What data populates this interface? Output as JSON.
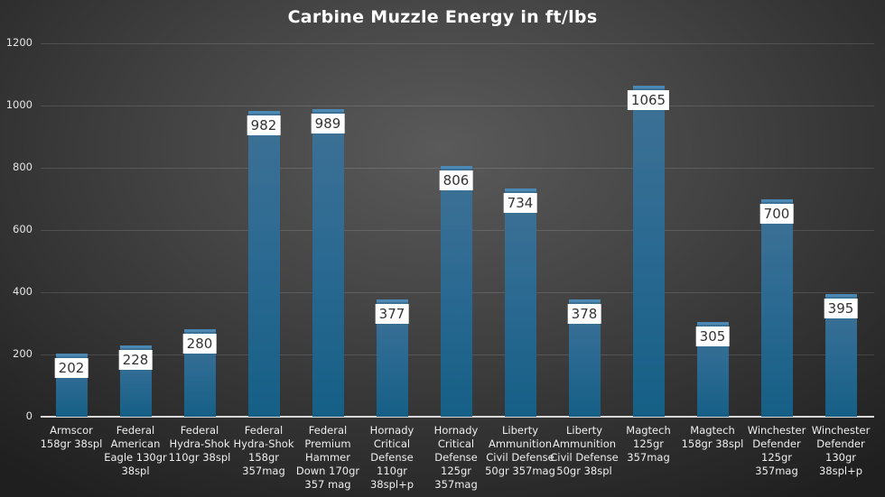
{
  "chart_data": {
    "type": "bar",
    "title": "Carbine Muzzle Energy in ft/lbs",
    "xlabel": "",
    "ylabel": "",
    "ylim": [
      0,
      1200
    ],
    "yticks": [
      0,
      200,
      400,
      600,
      800,
      1000,
      1200
    ],
    "grid": true,
    "legend": "none",
    "categories": [
      "Armscor 158gr 38spl",
      "Federal American Eagle 130gr 38spl",
      "Federal Hydra-Shok 110gr 38spl",
      "Federal Hydra-Shok 158gr 357mag",
      "Federal Premium Hammer Down 170gr 357 mag",
      "Hornady Critical Defense 110gr 38spl+p",
      "Hornady Critical Defense 125gr 357mag",
      "Liberty Ammunition Civil Defense 50gr 357mag",
      "Liberty Ammunition Civil Defense 50gr 38spl",
      "Magtech 125gr 357mag",
      "Magtech 158gr 38spl",
      "Winchester Defender 125gr 357mag",
      "Winchester Defender 130gr 38spl+p"
    ],
    "values": [
      202,
      228,
      280,
      982,
      989,
      377,
      806,
      734,
      378,
      1065,
      305,
      700,
      395
    ],
    "colors": {
      "bar": "#1f6690",
      "bar_top": "#4b88b3",
      "label_bg": "#ffffff"
    }
  },
  "category_lines": [
    [
      "Armscor",
      "158gr 38spl"
    ],
    [
      "Federal",
      "American",
      "Eagle 130gr",
      "38spl"
    ],
    [
      "Federal",
      "Hydra-Shok",
      "110gr 38spl"
    ],
    [
      "Federal",
      "Hydra-Shok",
      "158gr",
      "357mag"
    ],
    [
      "Federal",
      "Premium",
      "Hammer",
      "Down 170gr",
      "357 mag"
    ],
    [
      "Hornady",
      "Critical",
      "Defense",
      "110gr",
      "38spl+p"
    ],
    [
      "Hornady",
      "Critical",
      "Defense",
      "125gr",
      "357mag"
    ],
    [
      "Liberty",
      "Ammunition",
      "Civil Defense",
      "50gr 357mag"
    ],
    [
      "Liberty",
      "Ammunition",
      "Civil Defense",
      "50gr 38spl"
    ],
    [
      "Magtech",
      "125gr",
      "357mag"
    ],
    [
      "Magtech",
      "158gr 38spl"
    ],
    [
      "Winchester",
      "Defender",
      "125gr",
      "357mag"
    ],
    [
      "Winchester",
      "Defender",
      "130gr",
      "38spl+p"
    ]
  ]
}
